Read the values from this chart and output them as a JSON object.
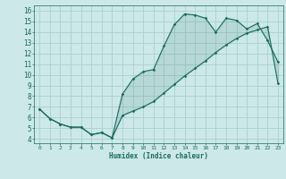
{
  "xlabel": "Humidex (Indice chaleur)",
  "bg_color": "#cce8e8",
  "grid_color": "#aad0d0",
  "line_color": "#1a6b60",
  "x_ticks": [
    0,
    1,
    2,
    3,
    4,
    5,
    6,
    7,
    8,
    9,
    10,
    11,
    12,
    13,
    14,
    15,
    16,
    17,
    18,
    19,
    20,
    21,
    22,
    23
  ],
  "y_ticks": [
    4,
    5,
    6,
    7,
    8,
    9,
    10,
    11,
    12,
    13,
    14,
    15,
    16
  ],
  "ylim": [
    3.6,
    16.5
  ],
  "xlim": [
    -0.5,
    23.5
  ],
  "line1_x": [
    0,
    1,
    2,
    3,
    4,
    5,
    6,
    7,
    8,
    9,
    10,
    11,
    12,
    13,
    14,
    15,
    16,
    17,
    18,
    19,
    20,
    21,
    22,
    23
  ],
  "line1_y": [
    6.8,
    5.9,
    5.4,
    5.1,
    5.1,
    4.4,
    4.6,
    4.1,
    8.2,
    9.6,
    10.3,
    10.5,
    12.7,
    14.7,
    15.7,
    15.6,
    15.3,
    14.0,
    15.3,
    15.1,
    14.3,
    14.8,
    13.2,
    11.2
  ],
  "line2_x": [
    0,
    1,
    2,
    3,
    4,
    5,
    6,
    7,
    8,
    9,
    10,
    11,
    12,
    13,
    14,
    15,
    16,
    17,
    18,
    19,
    20,
    21,
    22,
    23
  ],
  "line2_y": [
    6.8,
    5.9,
    5.4,
    5.1,
    5.1,
    4.4,
    4.6,
    4.1,
    6.2,
    6.6,
    7.0,
    7.5,
    8.3,
    9.1,
    9.9,
    10.6,
    11.3,
    12.1,
    12.8,
    13.4,
    13.9,
    14.2,
    14.5,
    9.2
  ]
}
